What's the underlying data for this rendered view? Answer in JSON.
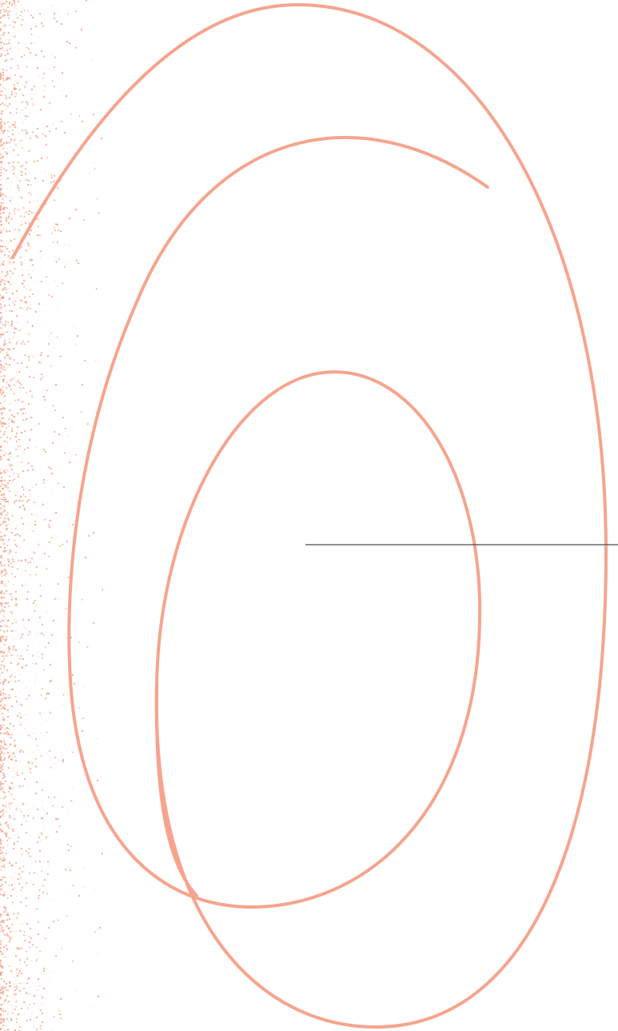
{
  "colors": {
    "background": "#ffffff",
    "accent": "#f6a48e",
    "grain": "#f3a086",
    "divider": "#4a4a4a"
  },
  "decoration": {
    "texture": "speckled-grain-left-edge",
    "shapes": [
      "outer-loop",
      "middle-spiral",
      "inner-oval"
    ],
    "rule": "thin-horizontal-line"
  }
}
